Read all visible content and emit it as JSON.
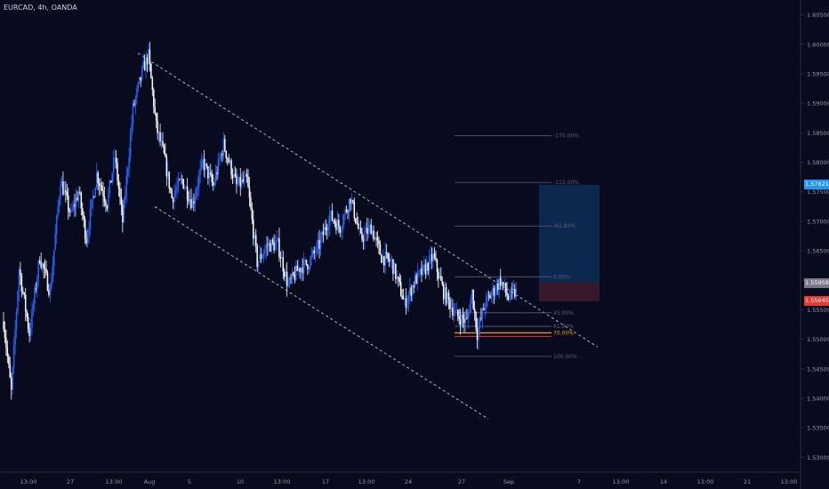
{
  "symbol_label": "EURCAD, 4h, OANDA",
  "colors": {
    "background": "#070b1d",
    "candle_up": "#2962ff",
    "candle_down": "#ffffff",
    "channel": "#d1d4dc",
    "fib_line": "#5d606b",
    "target_zone": "#0d2a52",
    "stop_zone": "#3a1a2a",
    "price_tag_blue": "#2196f3",
    "price_tag_gray": "#787b86",
    "price_tag_red": "#e53935"
  },
  "price_axis": {
    "ticks": [
      "1.60500",
      "1.60000",
      "1.59500",
      "1.59000",
      "1.58500",
      "1.58000",
      "1.57500",
      "1.57000",
      "1.56500",
      "1.56000",
      "1.55500",
      "1.55000",
      "1.54500",
      "1.54000",
      "1.53500",
      "1.53000"
    ],
    "tags": [
      {
        "label": "1.57621",
        "price": 1.57621,
        "color": "#2196f3"
      },
      {
        "label": "1.55958",
        "price": 1.55958,
        "color": "#787b86"
      },
      {
        "label": "1.55645",
        "price": 1.55645,
        "color": "#e53935"
      }
    ]
  },
  "time_axis": [
    "13:00",
    "27",
    "13:00",
    "Aug",
    "5",
    "10",
    "13:00",
    "17",
    "13:00",
    "24",
    "27",
    "Sep",
    "7",
    "13:00",
    "14",
    "13:00",
    "21",
    "13:00"
  ],
  "fib_levels": [
    {
      "label": "-170.00%",
      "price": 1.5845,
      "color": "#5d606b"
    },
    {
      "label": "-115.00%",
      "price": 1.5766,
      "color": "#5d606b"
    },
    {
      "label": "-61.80%",
      "price": 1.5692,
      "color": "#5d606b"
    },
    {
      "label": "0.00%",
      "price": 1.5606,
      "color": "#5d606b"
    },
    {
      "label": "45.00%",
      "price": 1.5545,
      "color": "#5d606b"
    },
    {
      "label": "61.80%",
      "price": 1.5522,
      "color": "#5d606b"
    },
    {
      "label": "70.00%",
      "price": 1.5511,
      "color": "#ff9800"
    },
    {
      "label": "100.00%",
      "price": 1.5471,
      "color": "#5d606b"
    }
  ],
  "chart_data": {
    "type": "candlestick",
    "symbol": "EURCAD",
    "interval": "4h",
    "ylim": [
      1.5275,
      1.6075
    ],
    "trend_points": [
      [
        0,
        1.553
      ],
      [
        6,
        1.541
      ],
      [
        12,
        1.562
      ],
      [
        20,
        1.551
      ],
      [
        28,
        1.564
      ],
      [
        36,
        1.558
      ],
      [
        44,
        1.577
      ],
      [
        52,
        1.571
      ],
      [
        58,
        1.575
      ],
      [
        64,
        1.567
      ],
      [
        72,
        1.578
      ],
      [
        80,
        1.573
      ],
      [
        86,
        1.581
      ],
      [
        92,
        1.57
      ],
      [
        100,
        1.589
      ],
      [
        108,
        1.596
      ],
      [
        112,
        1.598
      ],
      [
        118,
        1.586
      ],
      [
        124,
        1.581
      ],
      [
        130,
        1.574
      ],
      [
        138,
        1.577
      ],
      [
        146,
        1.573
      ],
      [
        154,
        1.58
      ],
      [
        162,
        1.576
      ],
      [
        170,
        1.583
      ],
      [
        180,
        1.576
      ],
      [
        188,
        1.577
      ],
      [
        196,
        1.563
      ],
      [
        204,
        1.566
      ],
      [
        212,
        1.566
      ],
      [
        220,
        1.559
      ],
      [
        228,
        1.562
      ],
      [
        236,
        1.563
      ],
      [
        244,
        1.566
      ],
      [
        252,
        1.571
      ],
      [
        260,
        1.569
      ],
      [
        268,
        1.574
      ],
      [
        276,
        1.567
      ],
      [
        284,
        1.569
      ],
      [
        292,
        1.564
      ],
      [
        300,
        1.563
      ],
      [
        310,
        1.556
      ],
      [
        318,
        1.56
      ],
      [
        326,
        1.562
      ],
      [
        332,
        1.564
      ],
      [
        340,
        1.558
      ],
      [
        350,
        1.554
      ],
      [
        358,
        1.553
      ],
      [
        362,
        1.558
      ],
      [
        366,
        1.551
      ],
      [
        372,
        1.556
      ],
      [
        378,
        1.558
      ],
      [
        384,
        1.56
      ],
      [
        390,
        1.557
      ],
      [
        396,
        1.558
      ]
    ],
    "channel_upper": [
      [
        108,
        1.5985
      ],
      [
        344,
        1.5534
      ]
    ],
    "channel_lower": [
      [
        118,
        1.5725
      ],
      [
        342,
        1.5365
      ]
    ],
    "target": {
      "top": 1.57621,
      "entry": 1.55958,
      "stop": 1.55645
    }
  }
}
